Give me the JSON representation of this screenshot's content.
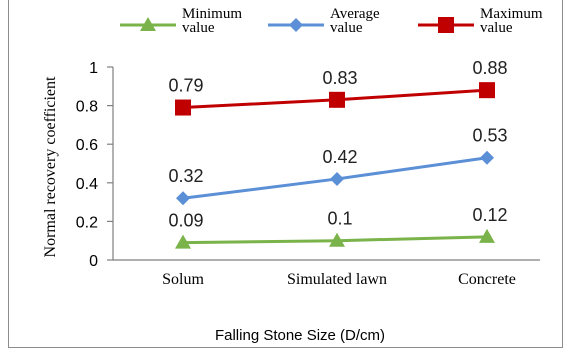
{
  "chart_data": {
    "type": "line",
    "categories": [
      "Solum",
      "Simulated lawn",
      "Concrete"
    ],
    "xlabel": "Falling Stone Size (D/cm)",
    "ylabel": "Normal recovery coefficient",
    "ylim": [
      0,
      1
    ],
    "yticks": [
      "0",
      "0.2",
      "0.4",
      "0.6",
      "0.8",
      "1"
    ],
    "legend_position": "top",
    "series": [
      {
        "name": "Minimum value",
        "values": [
          0.09,
          0.1,
          0.12
        ],
        "labels": [
          "0.09",
          "0.1",
          "0.12"
        ],
        "color": "#7ab34a",
        "marker": "triangle"
      },
      {
        "name": "Average value",
        "values": [
          0.32,
          0.42,
          0.53
        ],
        "labels": [
          "0.32",
          "0.42",
          "0.53"
        ],
        "color": "#5b8fd6",
        "marker": "diamond"
      },
      {
        "name": "Maximum value",
        "values": [
          0.79,
          0.83,
          0.88
        ],
        "labels": [
          "0.79",
          "0.83",
          "0.88"
        ],
        "color": "#c00000",
        "marker": "square"
      }
    ]
  }
}
